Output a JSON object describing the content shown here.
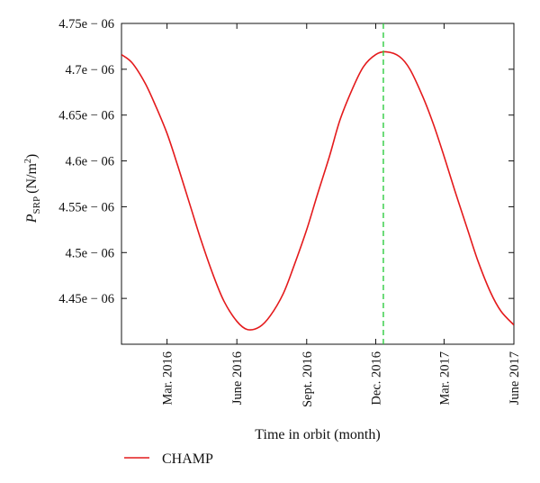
{
  "chart_data": {
    "type": "line",
    "xlabel": "Time in orbit (month)",
    "ylabel_main": "P",
    "ylabel_sub": "SRP",
    "ylabel_unit": "(N/m",
    "ylabel_unit_sup": "2",
    "ylabel_close": ")",
    "xlim": [
      "2016-01-01",
      "2017-06-01"
    ],
    "ylim": [
      4.4e-06,
      4.75e-06
    ],
    "x_ticks": [
      {
        "date": "2016-03-01",
        "label": "Mar. 2016"
      },
      {
        "date": "2016-06-01",
        "label": "June 2016"
      },
      {
        "date": "2016-09-01",
        "label": "Sept. 2016"
      },
      {
        "date": "2016-12-01",
        "label": "Dec. 2016"
      },
      {
        "date": "2017-03-01",
        "label": "Mar. 2017"
      },
      {
        "date": "2017-06-01",
        "label": "June 2017"
      }
    ],
    "y_ticks": [
      {
        "value": 4.45e-06,
        "label": "4.45e − 06"
      },
      {
        "value": 4.5e-06,
        "label": "4.5e − 06"
      },
      {
        "value": 4.55e-06,
        "label": "4.55e − 06"
      },
      {
        "value": 4.6e-06,
        "label": "4.6e − 06"
      },
      {
        "value": 4.65e-06,
        "label": "4.65e − 06"
      },
      {
        "value": 4.7e-06,
        "label": "4.7e − 06"
      },
      {
        "value": 4.75e-06,
        "label": "4.75e − 06"
      }
    ],
    "series": [
      {
        "name": "CHAMP",
        "color": "#e41a1c",
        "points": [
          {
            "x": "2016-01-01",
            "y": 4.716e-06
          },
          {
            "x": "2016-01-15",
            "y": 4.707e-06
          },
          {
            "x": "2016-02-01",
            "y": 4.685e-06
          },
          {
            "x": "2016-02-15",
            "y": 4.66e-06
          },
          {
            "x": "2016-03-01",
            "y": 4.63e-06
          },
          {
            "x": "2016-03-15",
            "y": 4.595e-06
          },
          {
            "x": "2016-04-01",
            "y": 4.55e-06
          },
          {
            "x": "2016-04-15",
            "y": 4.513e-06
          },
          {
            "x": "2016-05-01",
            "y": 4.475e-06
          },
          {
            "x": "2016-05-15",
            "y": 4.447e-06
          },
          {
            "x": "2016-06-01",
            "y": 4.425e-06
          },
          {
            "x": "2016-06-15",
            "y": 4.416e-06
          },
          {
            "x": "2016-07-01",
            "y": 4.419e-06
          },
          {
            "x": "2016-07-15",
            "y": 4.431e-06
          },
          {
            "x": "2016-08-01",
            "y": 4.455e-06
          },
          {
            "x": "2016-08-15",
            "y": 4.485e-06
          },
          {
            "x": "2016-09-01",
            "y": 4.525e-06
          },
          {
            "x": "2016-09-15",
            "y": 4.563e-06
          },
          {
            "x": "2016-10-01",
            "y": 4.605e-06
          },
          {
            "x": "2016-10-15",
            "y": 4.645e-06
          },
          {
            "x": "2016-11-01",
            "y": 4.68e-06
          },
          {
            "x": "2016-11-15",
            "y": 4.703e-06
          },
          {
            "x": "2016-12-01",
            "y": 4.716e-06
          },
          {
            "x": "2016-12-15",
            "y": 4.719e-06
          },
          {
            "x": "2017-01-01",
            "y": 4.714e-06
          },
          {
            "x": "2017-01-15",
            "y": 4.7e-06
          },
          {
            "x": "2017-02-01",
            "y": 4.67e-06
          },
          {
            "x": "2017-02-15",
            "y": 4.64e-06
          },
          {
            "x": "2017-03-01",
            "y": 4.605e-06
          },
          {
            "x": "2017-03-15",
            "y": 4.568e-06
          },
          {
            "x": "2017-04-01",
            "y": 4.525e-06
          },
          {
            "x": "2017-04-15",
            "y": 4.49e-06
          },
          {
            "x": "2017-05-01",
            "y": 4.457e-06
          },
          {
            "x": "2017-05-15",
            "y": 4.436e-06
          },
          {
            "x": "2017-06-01",
            "y": 4.421e-06
          }
        ]
      }
    ],
    "reference_line": {
      "x": "2016-12-11",
      "color": "#2ecc40",
      "style": "dashed"
    },
    "legend": {
      "placement": "bottom-left",
      "entries": [
        "CHAMP"
      ]
    },
    "grid": false
  }
}
